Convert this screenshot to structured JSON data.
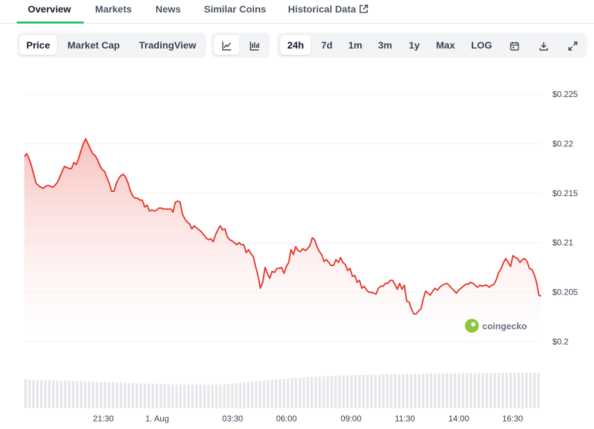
{
  "tabs": [
    {
      "label": "Overview",
      "active": true
    },
    {
      "label": "Markets"
    },
    {
      "label": "News"
    },
    {
      "label": "Similar Coins"
    },
    {
      "label": "Historical Data",
      "icon": "external-link-icon"
    }
  ],
  "metric_buttons": [
    {
      "label": "Price",
      "selected": true
    },
    {
      "label": "Market Cap"
    },
    {
      "label": "TradingView"
    }
  ],
  "chart_type_buttons": [
    {
      "icon": "line-chart-icon",
      "selected": true
    },
    {
      "icon": "candlestick-chart-icon"
    }
  ],
  "range_buttons": [
    {
      "label": "24h",
      "selected": true
    },
    {
      "label": "7d"
    },
    {
      "label": "1m"
    },
    {
      "label": "3m"
    },
    {
      "label": "1y"
    },
    {
      "label": "Max"
    },
    {
      "label": "LOG"
    }
  ],
  "tool_icons": [
    "calendar-icon",
    "download-icon",
    "fullscreen-icon"
  ],
  "watermark": "coingecko",
  "colors": {
    "line": "#e5392f",
    "area_top": "#f6b9b4",
    "grid": "#eef0f3",
    "volume": "#e5e7eb",
    "tab_accent": "#22c55e"
  },
  "chart_data": {
    "type": "area",
    "y_ticks": [
      "0.225",
      "0.22",
      "0.215",
      "0.21",
      "0.205",
      "0.2"
    ],
    "y_tick_prefix": "$",
    "ylim": [
      0.2,
      0.225
    ],
    "x_ticks": [
      {
        "label": "21:30",
        "hour": 3.67
      },
      {
        "label": "1. Aug",
        "hour": 6.17
      },
      {
        "label": "03:30",
        "hour": 9.67
      },
      {
        "label": "06:00",
        "hour": 12.17
      },
      {
        "label": "09:00",
        "hour": 15.17
      },
      {
        "label": "11:30",
        "hour": 17.67
      },
      {
        "label": "14:00",
        "hour": 20.17
      },
      {
        "label": "16:30",
        "hour": 22.67
      }
    ],
    "xlim": [
      0,
      24
    ],
    "grid": true,
    "series": [
      {
        "values": [
          0.2187,
          0.219,
          0.2185,
          0.2178,
          0.2169,
          0.216,
          0.2158,
          0.2156,
          0.2155,
          0.2157,
          0.2158,
          0.2157,
          0.2156,
          0.2158,
          0.2161,
          0.2166,
          0.2172,
          0.2177,
          0.2176,
          0.2175,
          0.2175,
          0.2181,
          0.2179,
          0.2185,
          0.2193,
          0.22,
          0.2205,
          0.22,
          0.2195,
          0.219,
          0.2188,
          0.2184,
          0.2178,
          0.2174,
          0.2172,
          0.2166,
          0.216,
          0.2152,
          0.2152,
          0.216,
          0.2165,
          0.2168,
          0.2169,
          0.2166,
          0.216,
          0.2152,
          0.2147,
          0.2145,
          0.2145,
          0.2143,
          0.2143,
          0.2136,
          0.2138,
          0.2132,
          0.2133,
          0.2132,
          0.2133,
          0.2135,
          0.2135,
          0.2134,
          0.2134,
          0.2134,
          0.2134,
          0.2131,
          0.2141,
          0.2142,
          0.2141,
          0.2129,
          0.2124,
          0.2121,
          0.2119,
          0.2114,
          0.2117,
          0.2115,
          0.2113,
          0.2111,
          0.2108,
          0.2105,
          0.2103,
          0.2104,
          0.2101,
          0.2108,
          0.2113,
          0.2117,
          0.2113,
          0.2114,
          0.2106,
          0.2103,
          0.2102,
          0.21,
          0.2098,
          0.21,
          0.2098,
          0.2098,
          0.209,
          0.2093,
          0.2089,
          0.2086,
          0.2076,
          0.2067,
          0.2054,
          0.206,
          0.2075,
          0.2069,
          0.2064,
          0.2071,
          0.207,
          0.2074,
          0.2074,
          0.2075,
          0.2069,
          0.2076,
          0.208,
          0.2093,
          0.2088,
          0.2096,
          0.2092,
          0.2091,
          0.2094,
          0.2092,
          0.2094,
          0.2097,
          0.2105,
          0.2103,
          0.2096,
          0.2091,
          0.2088,
          0.2081,
          0.2083,
          0.208,
          0.2077,
          0.2077,
          0.2083,
          0.208,
          0.2085,
          0.208,
          0.2078,
          0.2072,
          0.2074,
          0.2066,
          0.2067,
          0.206,
          0.2062,
          0.2054,
          0.2056,
          0.2052,
          0.205,
          0.205,
          0.2049,
          0.2048,
          0.2054,
          0.2056,
          0.2056,
          0.2059,
          0.2059,
          0.2062,
          0.2062,
          0.2058,
          0.2053,
          0.2059,
          0.2053,
          0.2057,
          0.2041,
          0.204,
          0.2033,
          0.2028,
          0.2028,
          0.2031,
          0.2033,
          0.2043,
          0.2051,
          0.2049,
          0.2047,
          0.2051,
          0.2054,
          0.2052,
          0.2055,
          0.2057,
          0.2058,
          0.2059,
          0.2057,
          0.2054,
          0.2052,
          0.2049,
          0.2052,
          0.2054,
          0.2056,
          0.2058,
          0.2058,
          0.206,
          0.2059,
          0.2057,
          0.2055,
          0.2057,
          0.2056,
          0.2057,
          0.2057,
          0.2055,
          0.2057,
          0.2058,
          0.2063,
          0.207,
          0.2074,
          0.208,
          0.2084,
          0.208,
          0.2076,
          0.2087,
          0.2085,
          0.2084,
          0.208,
          0.2083,
          0.2084,
          0.2081,
          0.2074,
          0.2073,
          0.2068,
          0.206,
          0.2047,
          0.2046
        ]
      }
    ],
    "volume": [
      0.82,
      0.8,
      0.81,
      0.79,
      0.8,
      0.78,
      0.79,
      0.8,
      0.78,
      0.77,
      0.79,
      0.78,
      0.76,
      0.77,
      0.78,
      0.76,
      0.75,
      0.76,
      0.74,
      0.75,
      0.74,
      0.73,
      0.74,
      0.72,
      0.73,
      0.72,
      0.71,
      0.72,
      0.7,
      0.71,
      0.7,
      0.69,
      0.7,
      0.69,
      0.68,
      0.69,
      0.68,
      0.67,
      0.68,
      0.67,
      0.68,
      0.67,
      0.66,
      0.67,
      0.66,
      0.67,
      0.66,
      0.67,
      0.68,
      0.67,
      0.68,
      0.69,
      0.7,
      0.71,
      0.72,
      0.73,
      0.74,
      0.75,
      0.76,
      0.77,
      0.78,
      0.79,
      0.8,
      0.81,
      0.82,
      0.83,
      0.84,
      0.85,
      0.86,
      0.86,
      0.87,
      0.88,
      0.89,
      0.89,
      0.9,
      0.9,
      0.91,
      0.91,
      0.92,
      0.92,
      0.93,
      0.93,
      0.93,
      0.94,
      0.94,
      0.94,
      0.95,
      0.95,
      0.95,
      0.95,
      0.96,
      0.96,
      0.96,
      0.96,
      0.96,
      0.97,
      0.97,
      0.97,
      0.97,
      0.97,
      0.97,
      0.98,
      0.98,
      0.98,
      0.98,
      0.98,
      0.98,
      0.98,
      0.98,
      0.99,
      0.99,
      0.99,
      0.99,
      0.99,
      0.99,
      0.99,
      0.99,
      0.99,
      1.0,
      1.0,
      1.0,
      1.0,
      1.0,
      1.0,
      1.0,
      1.0,
      1.0,
      1.0,
      1.0,
      1.0
    ]
  }
}
